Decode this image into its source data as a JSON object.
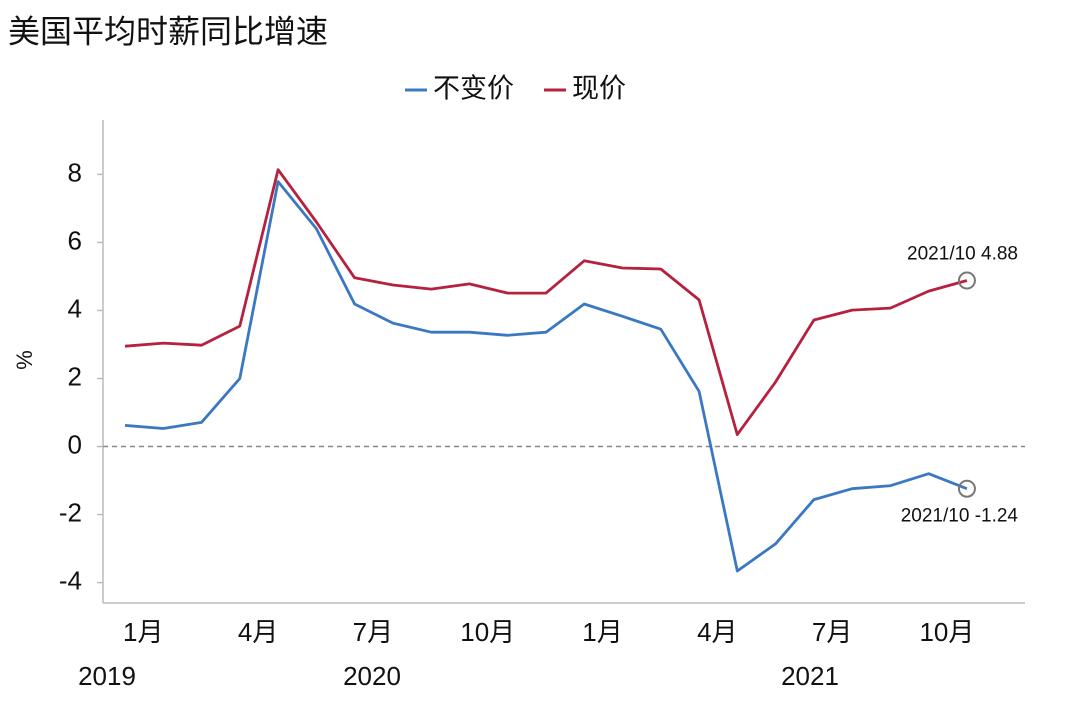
{
  "chart_data": {
    "type": "line",
    "title": "美国平均时薪同比增速",
    "y_label": "%",
    "categories": [
      null,
      "1月",
      null,
      null,
      "4月",
      null,
      null,
      "7月",
      null,
      null,
      "10月",
      null,
      null,
      "1月",
      null,
      null,
      "4月",
      null,
      null,
      "7月",
      null,
      null,
      "10月"
    ],
    "years": [
      "2019",
      "2020",
      "2021"
    ],
    "series": [
      {
        "name": "不变价",
        "color": "#3b78c2",
        "values": [
          0.62,
          0.53,
          0.71,
          2.0,
          7.79,
          6.4,
          4.19,
          3.63,
          3.36,
          3.36,
          3.27,
          3.36,
          4.19,
          3.83,
          3.45,
          1.62,
          -3.66,
          -2.86,
          -1.56,
          -1.24,
          -1.15,
          -0.8,
          -1.24
        ]
      },
      {
        "name": "现价",
        "color": "#b5213f",
        "values": [
          2.95,
          3.04,
          2.98,
          3.54,
          8.14,
          6.6,
          4.96,
          4.75,
          4.63,
          4.78,
          4.51,
          4.51,
          5.46,
          5.25,
          5.22,
          4.31,
          0.35,
          1.9,
          3.72,
          4.01,
          4.07,
          4.57,
          4.88
        ]
      }
    ],
    "annotations": [
      "2021/10 -1.24",
      "2021/10 4.88"
    ],
    "ylim": [
      -4.6,
      9.6
    ],
    "yticks": [
      -4,
      -2,
      0,
      2,
      4,
      6,
      8
    ],
    "zero_line": true,
    "legend": "top"
  }
}
